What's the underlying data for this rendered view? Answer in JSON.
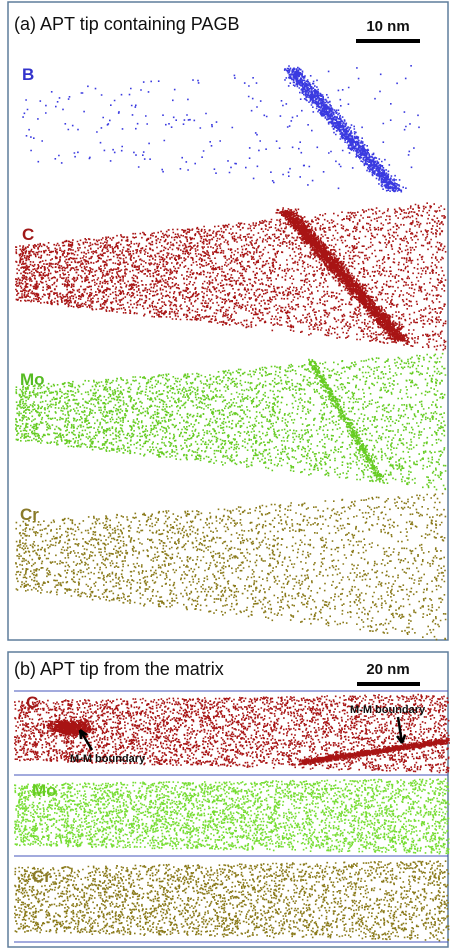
{
  "panel_a": {
    "title": "(a) APT tip containing PAGB",
    "scale_bar": "10 nm",
    "maps": [
      {
        "label": "B"
      },
      {
        "label": "C"
      },
      {
        "label": "Mo"
      },
      {
        "label": "Cr"
      }
    ]
  },
  "panel_b": {
    "title": "(b) APT tip from the matrix",
    "scale_bar": "20 nm",
    "maps": [
      {
        "label": "C"
      },
      {
        "label": "Mo"
      },
      {
        "label": "Cr"
      }
    ],
    "annotations": [
      "M-M boundary",
      "M-M boundary"
    ]
  }
}
